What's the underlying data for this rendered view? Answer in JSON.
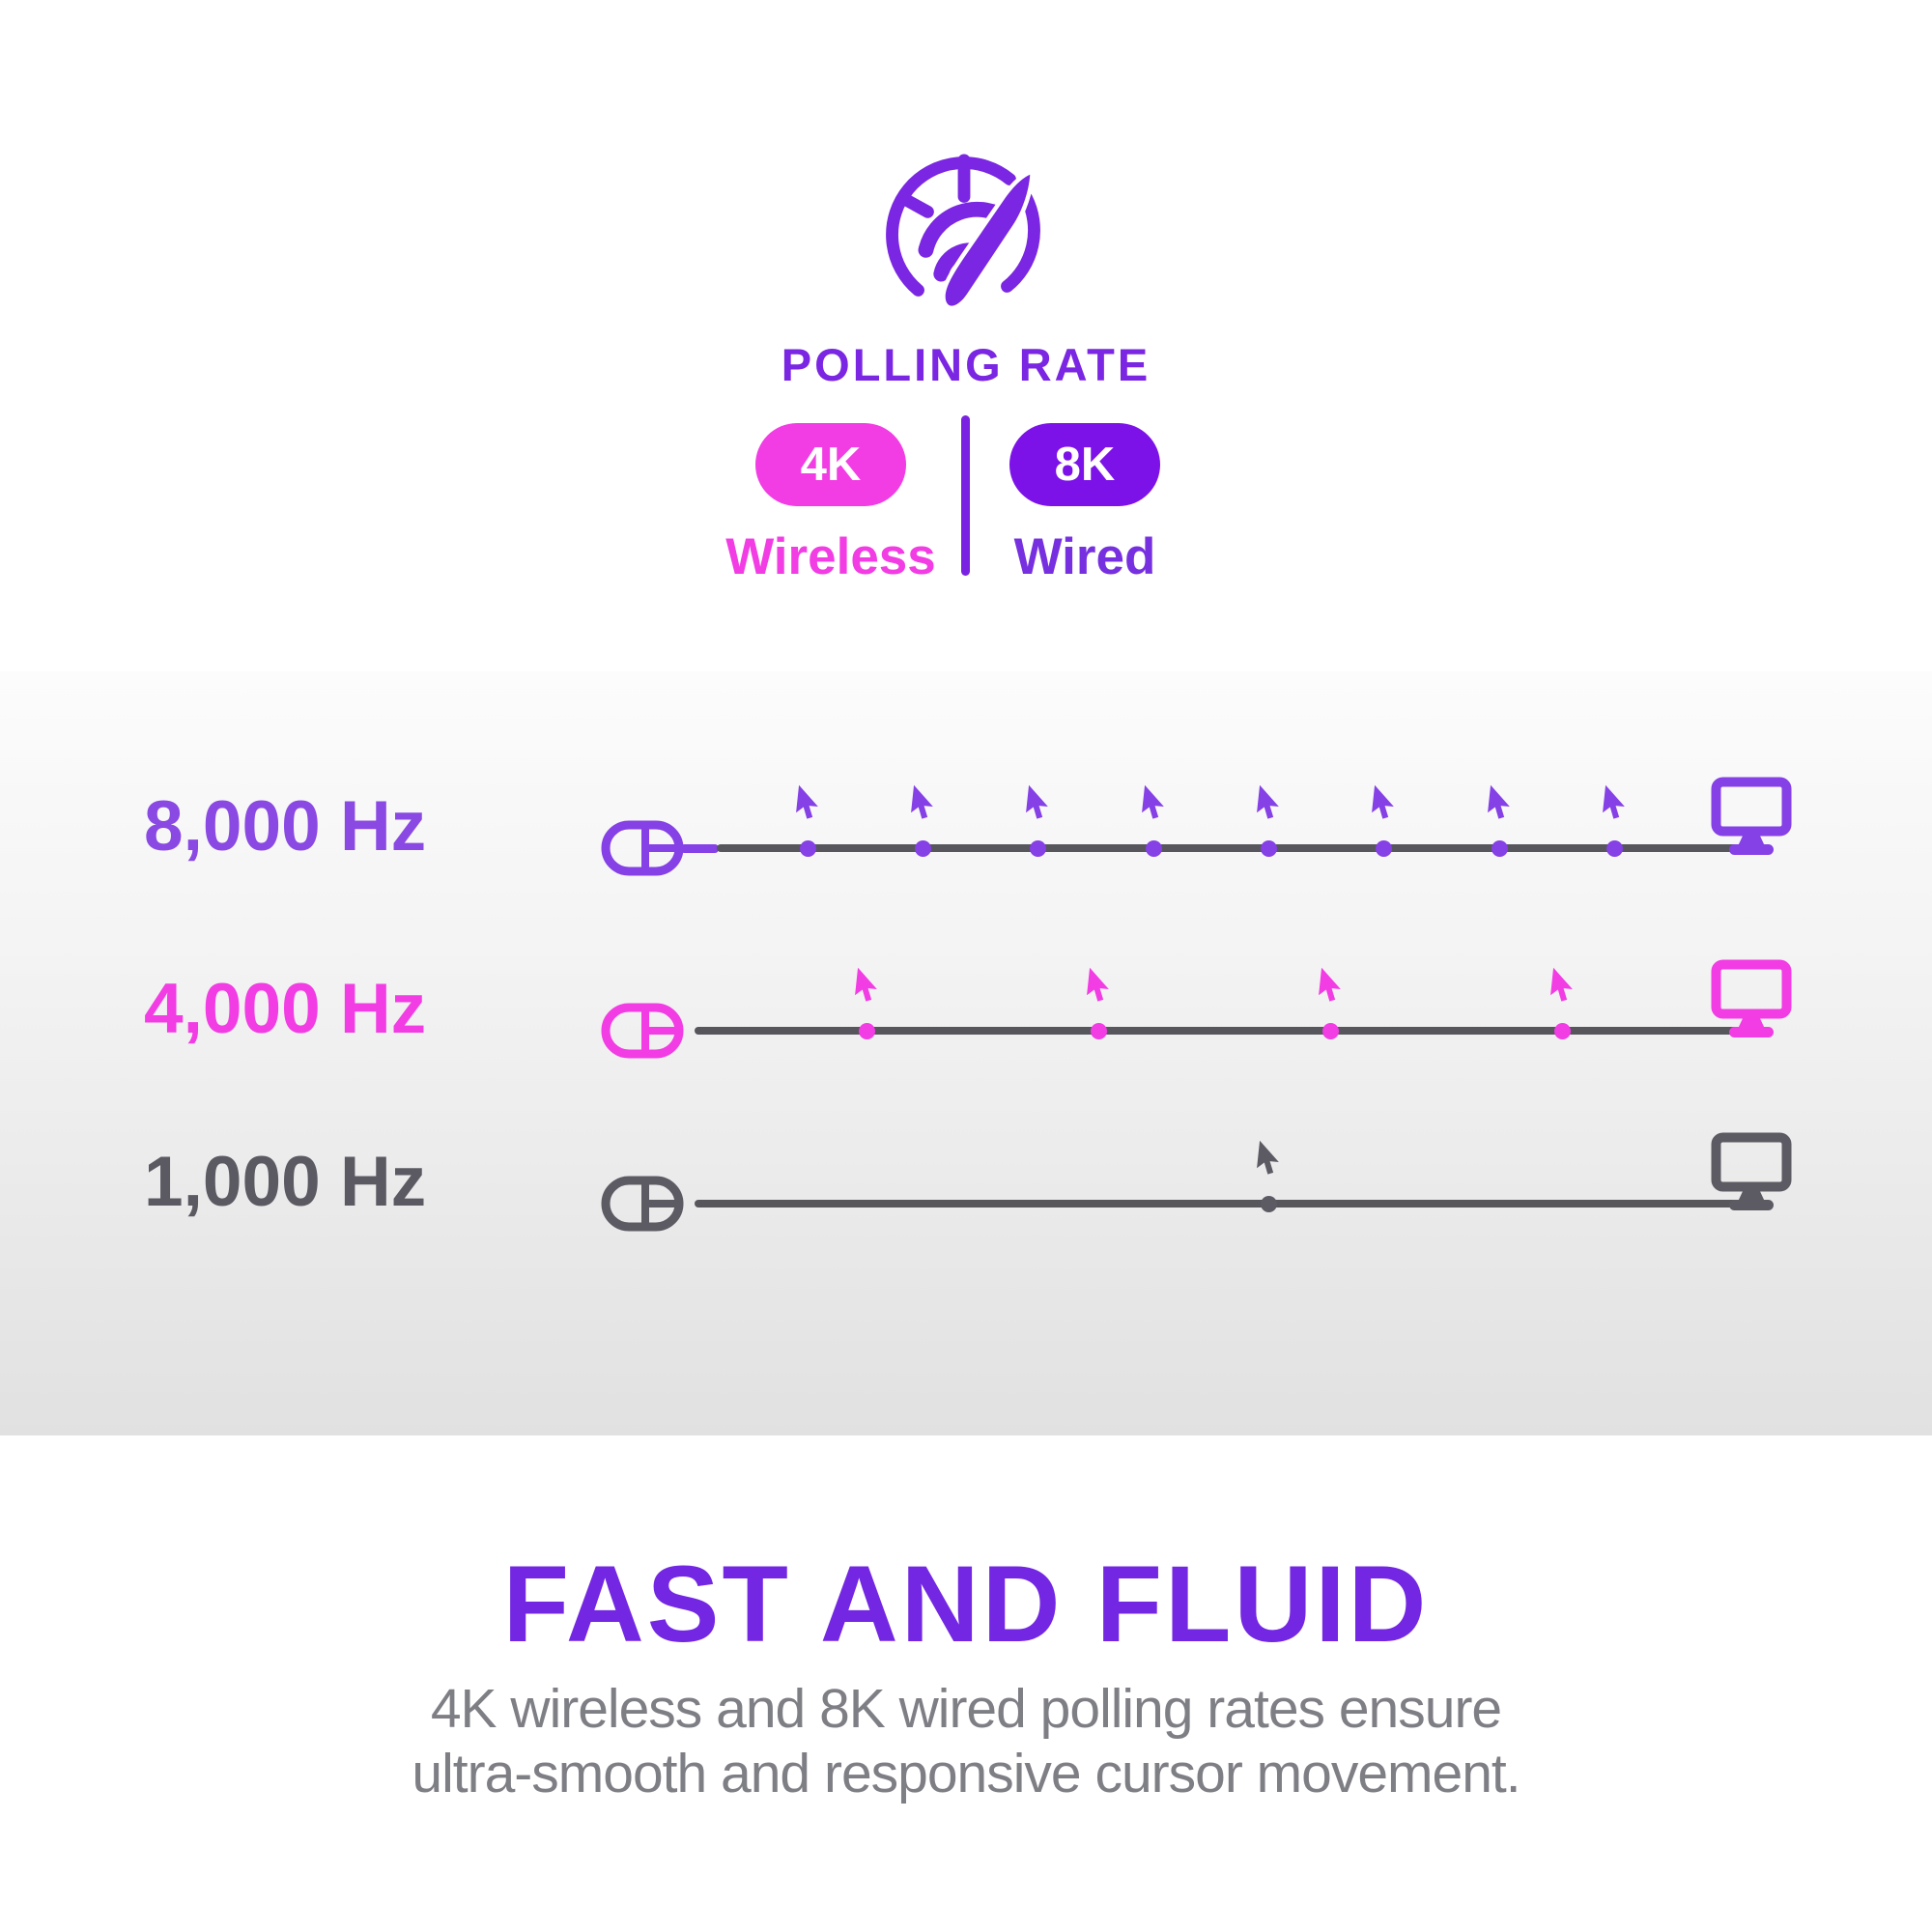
{
  "header": {
    "icon": "speedometer-icon",
    "title": "POLLING RATE",
    "badges": [
      {
        "value": "4K",
        "label": "Wireless",
        "pill_color": "#F23CE4",
        "label_color": "#F23CE4"
      },
      {
        "value": "8K",
        "label": "Wired",
        "pill_color": "#7C12E8",
        "label_color": "#7730E0"
      }
    ],
    "divider_color": "#7A22E2"
  },
  "diagram": {
    "line_color": "#56565C",
    "rows": [
      {
        "label": "8,000 Hz",
        "hz": 8000,
        "reports_shown": 8,
        "color": "#8540E6",
        "text_color": "#8A49E3",
        "left_icon": "mouse-icon",
        "right_icon": "monitor-icon",
        "wired_stub": true
      },
      {
        "label": "4,000 Hz",
        "hz": 4000,
        "reports_shown": 4,
        "color": "#F23CE4",
        "text_color": "#F23CE4",
        "left_icon": "mouse-icon",
        "right_icon": "monitor-icon",
        "wired_stub": false
      },
      {
        "label": "1,000 Hz",
        "hz": 1000,
        "reports_shown": 1,
        "color": "#5C5B64",
        "text_color": "#5B5A63",
        "left_icon": "mouse-icon",
        "right_icon": "monitor-icon",
        "wired_stub": false
      }
    ]
  },
  "footer": {
    "heading": "FAST AND FLUID",
    "heading_color": "#7327E2",
    "description_lines": [
      "4K wireless and 8K wired polling rates ensure",
      "ultra-smooth and responsive cursor movement."
    ]
  }
}
